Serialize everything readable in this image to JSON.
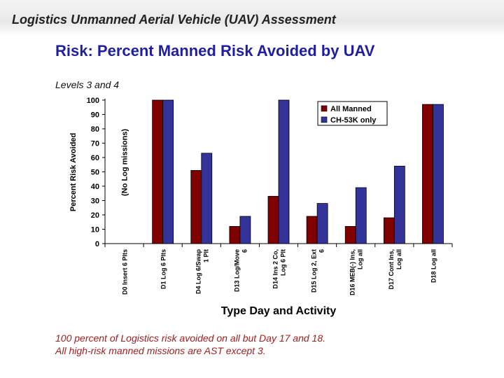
{
  "slide": {
    "header": "Logistics Unmanned Aerial Vehicle (UAV) Assessment",
    "title": "Risk: Percent Manned Risk Avoided by UAV",
    "subtitle": "Levels 3 and 4",
    "notes": [
      "100 percent of Logistics risk avoided on all but Day 17 and 18.",
      "All high-risk manned missions are AST except 3."
    ]
  },
  "chart_data": {
    "type": "bar",
    "title": "",
    "xlabel": "Type Day and Activity",
    "ylabel": "Percent Risk Avoided",
    "ylim": [
      0,
      100
    ],
    "yticks": [
      0,
      10,
      20,
      30,
      40,
      50,
      60,
      70,
      80,
      90,
      100
    ],
    "grid": false,
    "legend_position": "top-right",
    "categories": [
      [
        "D0 Insert 6 Plts"
      ],
      [
        "D1 Log 6 Plts"
      ],
      [
        "D4 Log 6/Swap",
        "1 Plt"
      ],
      [
        "D13 Log/Move",
        "6"
      ],
      [
        "D14 Ins 2 Co,",
        "Log 6 Plt"
      ],
      [
        "D15 Log 2, Ext",
        "6"
      ],
      [
        "D16 MEB(-) Ins,",
        "Log all"
      ],
      [
        "D17 Cont Ins,",
        "Log all"
      ],
      [
        "D18 Log all"
      ]
    ],
    "series": [
      {
        "name": "All Manned",
        "color": "#800000",
        "values": [
          null,
          100,
          51,
          12,
          33,
          19,
          12,
          18,
          97
        ]
      },
      {
        "name": "CH-53K only",
        "color": "#333399",
        "values": [
          null,
          100,
          63,
          19,
          100,
          28,
          39,
          54,
          97
        ]
      }
    ],
    "annotations": [
      {
        "text": "(No Log missions)",
        "category_index": 0
      }
    ]
  }
}
